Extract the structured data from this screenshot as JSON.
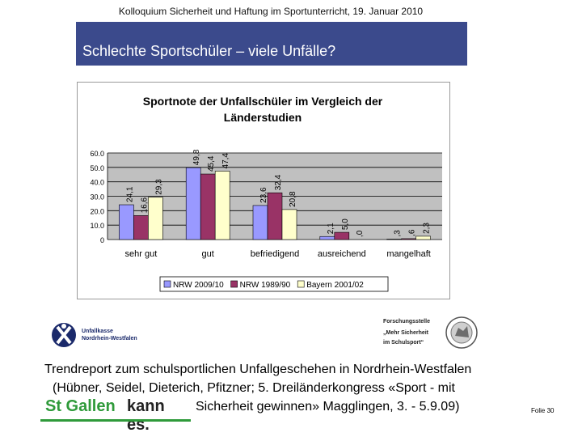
{
  "header": {
    "conference": "Kolloquium Sicherheit und Haftung im Sportunterricht, 19. Januar 2010"
  },
  "slide": {
    "title": "Schlechte Sportschüler – viele Unfälle?",
    "slide_number": "Folie 30"
  },
  "logos": {
    "left": {
      "line1": "Unfallkasse",
      "line2": "Nordrhein-Westfalen"
    },
    "right": {
      "line1": "Forschungsstelle",
      "line2": "„Mehr Sicherheit",
      "line3": "im Schulsport“"
    },
    "st_gallen": {
      "part1": "St Gallen",
      "part2": "kann es."
    }
  },
  "footer": {
    "line1": "Trendreport zum schulsportlichen Unfallgeschehen in Nordrhein-Westfalen",
    "line2": "(Hübner, Seidel, Dieterich, Pfitzner; 5. Dreiländerkongress «Sport - mit",
    "line3": "Sicherheit gewinnen» Magglingen, 3. - 5.9.09)"
  },
  "colors": {
    "title_bar": "#3b4a8c",
    "nrw2009": "#9999ff",
    "nrw1989": "#993366",
    "bayern": "#ffffcc",
    "st_gallen_green": "#2f9a3a"
  },
  "chart_data": {
    "type": "bar",
    "title_line1": "Sportnote der Unfallschüler im Vergleich der",
    "title_line2": "Länderstudien",
    "categories": [
      "sehr gut",
      "gut",
      "befriedigend",
      "ausreichend",
      "mangelhaft"
    ],
    "series": [
      {
        "name": "NRW 2009/10",
        "color": "#9999ff",
        "values": [
          24.1,
          49.8,
          23.6,
          2.1,
          0.3
        ],
        "labels": [
          "24,1",
          "49,8",
          "23,6",
          "2,1",
          ",3"
        ]
      },
      {
        "name": "NRW 1989/90",
        "color": "#993366",
        "values": [
          16.6,
          45.4,
          32.4,
          5.0,
          0.6
        ],
        "labels": [
          "16,6",
          "45,4",
          "32,4",
          "5,0",
          ",6"
        ]
      },
      {
        "name": "Bayern 2001/02",
        "color": "#ffffcc",
        "values": [
          29.3,
          47.4,
          20.8,
          0.0,
          2.3
        ],
        "labels": [
          "29,3",
          "47,4",
          "20,8",
          ",0",
          "2,3"
        ]
      }
    ],
    "yticks": [
      "0",
      "10.0",
      "20.0",
      "30.0",
      "40.0",
      "50.0",
      "60.0"
    ],
    "ylim": [
      0,
      60
    ],
    "grid": true,
    "legend": "bottom"
  }
}
